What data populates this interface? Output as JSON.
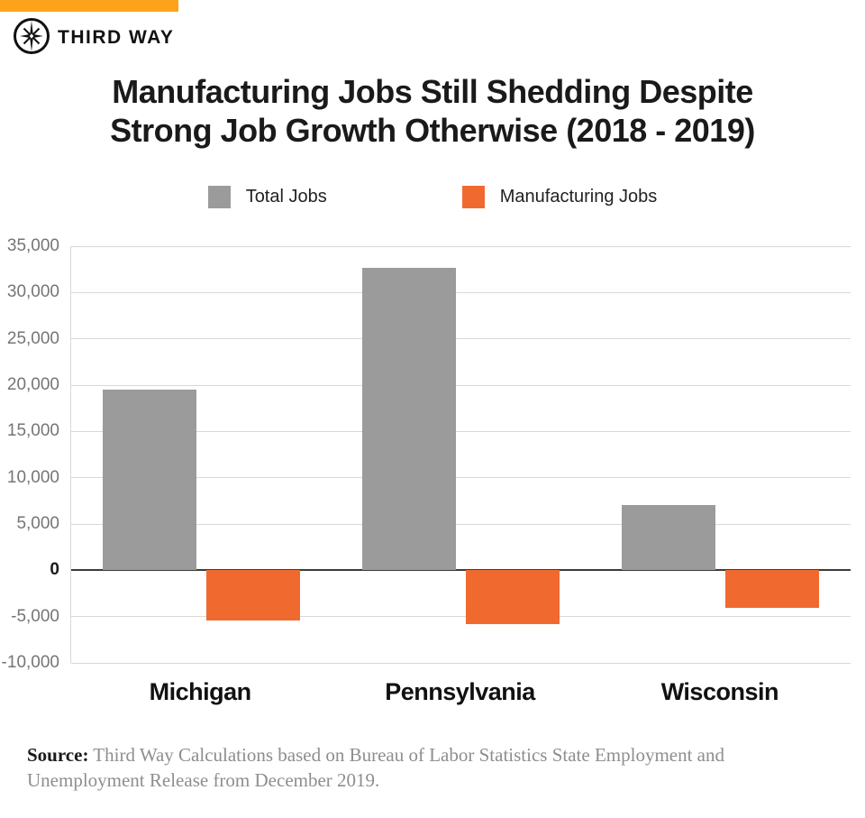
{
  "brand": {
    "name": "THIRD WAY",
    "banner_color": "#FCA31B",
    "logo_icon": "compass-star-icon"
  },
  "title": {
    "line1": "Manufacturing Jobs Still Shedding Despite",
    "line2": "Strong Job Growth Otherwise (2018 - 2019)"
  },
  "chart_data": {
    "type": "bar",
    "title": "Manufacturing Jobs Still Shedding Despite Strong Job Growth Otherwise (2018 - 2019)",
    "categories": [
      "Michigan",
      "Pennsylvania",
      "Wisconsin"
    ],
    "series": [
      {
        "name": "Total Jobs",
        "color": "#9B9B9B",
        "values": [
          19500,
          32700,
          7000
        ]
      },
      {
        "name": "Manufacturing Jobs",
        "color": "#F06A30",
        "values": [
          -5400,
          -5800,
          -4100
        ]
      }
    ],
    "ylim": [
      -10000,
      35000
    ],
    "y_tick_step": 5000,
    "y_tick_labels": [
      "35,000",
      "30,000",
      "25,000",
      "20,000",
      "15,000",
      "10,000",
      "5,000",
      "0",
      "-5,000",
      "-10,000"
    ],
    "grid": true,
    "legend_position": "top",
    "xlabel": "",
    "ylabel": ""
  },
  "colors": {
    "gridline": "#D8D8D8",
    "zero_line": "#3B3B3B",
    "axis_text": "#757575",
    "title_text": "#1A1A1A"
  },
  "source": {
    "label": "Source:",
    "text": " Third Way Calculations based on Bureau of Labor Statistics State Employment and Unemployment Release from December 2019."
  }
}
